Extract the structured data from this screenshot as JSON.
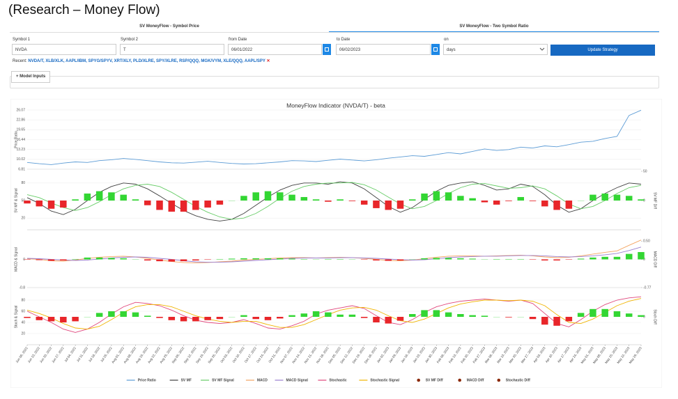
{
  "header": {
    "title": "(Research – Money Flow)"
  },
  "tabs": [
    "SV MoneyFlow - Symbol Price",
    "SV MoneyFlow - Two Symbol Ratio"
  ],
  "form": {
    "symbol1": {
      "label": "Symbol 1",
      "value": "NVDA"
    },
    "symbol2": {
      "label": "Symbol 2",
      "value": "T"
    },
    "from_date": {
      "label": "from Date",
      "value": "06/01/2022"
    },
    "to_date": {
      "label": "to Date",
      "value": "06/02/2023"
    },
    "interval": {
      "label": "on",
      "value": "days"
    },
    "button": "Update Strategy"
  },
  "recent": {
    "label": "Recent:",
    "items": "NVDA/T, XLB/XLK, AAPL/IBM, SPYG/SPYV, XRT/XLY, PLD/XLRE, SPY/XLRE, RSP/QQQ, MGK/VYM, XLE/QQQ, AAPL/SPY"
  },
  "model_inputs": "Model Inputs",
  "chart_data": {
    "type": "line",
    "title": "MoneyFlow Indicator (NVDA/T) - beta",
    "grid": true,
    "legend": "bottom",
    "positive_color": "#33d633",
    "negative_color": "#e8262a",
    "x": [
      "Jun 06, 2022",
      "Jun 13, 2022",
      "Jun 20, 2022",
      "Jun 27, 2022",
      "Jul 04, 2022",
      "Jul 11, 2022",
      "Jul 18, 2022",
      "Jul 25, 2022",
      "Aug 01, 2022",
      "Aug 08, 2022",
      "Aug 15, 2022",
      "Aug 22, 2022",
      "Aug 29, 2022",
      "Sep 05, 2022",
      "Sep 12, 2022",
      "Sep 19, 2022",
      "Sep 26, 2022",
      "Oct 03, 2022",
      "Oct 10, 2022",
      "Oct 17, 2022",
      "Oct 24, 2022",
      "Oct 31, 2022",
      "Nov 07, 2022",
      "Nov 14, 2022",
      "Nov 21, 2022",
      "Nov 28, 2022",
      "Dec 05, 2022",
      "Dec 12, 2022",
      "Dec 19, 2022",
      "Dec 26, 2022",
      "Jan 02, 2023",
      "Jan 09, 2023",
      "Jan 16, 2023",
      "Jan 23, 2023",
      "Jan 30, 2023",
      "Feb 06, 2023",
      "Feb 13, 2023",
      "Feb 20, 2023",
      "Feb 27, 2023",
      "Mar 06, 2023",
      "Mar 13, 2023",
      "Mar 20, 2023",
      "Mar 27, 2023",
      "Apr 03, 2023",
      "Apr 10, 2023",
      "Apr 17, 2023",
      "Apr 24, 2023",
      "May 01, 2023",
      "May 08, 2023",
      "May 15, 2023",
      "May 22, 2023",
      "May 29, 2023"
    ],
    "panels": [
      {
        "ylabel": "Price Ratio",
        "ylim": [
          6.81,
          26.07
        ],
        "yticks": [
          6.81,
          10.02,
          13.23,
          16.44,
          19.65,
          22.86,
          26.07
        ],
        "series": [
          {
            "name": "Price Ratio",
            "type": "line",
            "color": "#5b9bd5",
            "values": [
              9.0,
              8.6,
              8.3,
              8.8,
              9.2,
              9.0,
              9.6,
              9.9,
              10.3,
              10.0,
              9.6,
              9.2,
              8.9,
              8.8,
              9.1,
              9.4,
              9.0,
              8.7,
              8.5,
              8.6,
              8.9,
              9.2,
              9.6,
              9.5,
              9.3,
              9.7,
              10.1,
              9.8,
              9.5,
              9.9,
              10.4,
              10.8,
              11.2,
              11.0,
              11.6,
              12.2,
              11.8,
              12.6,
              13.4,
              12.9,
              13.2,
              14.0,
              13.7,
              14.4,
              14.1,
              14.8,
              15.6,
              15.9,
              16.8,
              17.5,
              24.3,
              26.0
            ]
          }
        ]
      },
      {
        "ylabel": "SV MF & Signal",
        "y2label": "SV MF Diff",
        "ylim": [
          0,
          100
        ],
        "yticks": [
          20,
          50,
          80
        ],
        "y2lim": [
          -50,
          50
        ],
        "y2ticks": [
          0,
          50
        ],
        "series": [
          {
            "name": "SV MF",
            "type": "line",
            "color": "#404040",
            "values": [
              55,
              45,
              32,
              26,
              35,
              50,
              64,
              74,
              80,
              78,
              70,
              58,
              45,
              33,
              24,
              18,
              15,
              18,
              28,
              42,
              56,
              68,
              76,
              80,
              80,
              78,
              82,
              80,
              70,
              55,
              40,
              30,
              38,
              52,
              66,
              76,
              80,
              82,
              76,
              68,
              70,
              78,
              74,
              60,
              42,
              30,
              36,
              50,
              62,
              72,
              80,
              78
            ]
          },
          {
            "name": "SV MF Signal",
            "type": "line",
            "color": "#66cc66",
            "values": [
              60,
              55,
              46,
              38,
              33,
              38,
              48,
              60,
              70,
              76,
              78,
              74,
              64,
              52,
              40,
              30,
              22,
              18,
              20,
              28,
              40,
              54,
              66,
              74,
              78,
              80,
              80,
              81,
              77,
              68,
              56,
              44,
              36,
              40,
              50,
              62,
              72,
              78,
              79,
              75,
              71,
              72,
              75,
              70,
              58,
              44,
              36,
              40,
              50,
              62,
              72,
              76
            ]
          },
          {
            "name": "SV MF Diff",
            "type": "bar",
            "axis": "y2",
            "color": "#8b2a0a",
            "values": [
              -5,
              -10,
              -14,
              -12,
              2,
              12,
              16,
              14,
              10,
              2,
              -8,
              -16,
              -19,
              -19,
              -16,
              -12,
              -7,
              0,
              8,
              14,
              16,
              14,
              10,
              6,
              2,
              -2,
              2,
              -1,
              -7,
              -13,
              -16,
              -14,
              2,
              12,
              16,
              14,
              8,
              4,
              -3,
              -7,
              -1,
              6,
              -1,
              -10,
              -16,
              -14,
              0,
              10,
              12,
              10,
              8,
              2
            ]
          }
        ]
      },
      {
        "ylabel": "MACD & Signal",
        "y2label": "MACD Diff",
        "ylim": [
          -0.8,
          0.8
        ],
        "yticks": [
          -0.8,
          0
        ],
        "y2lim": [
          -0.77,
          0.77
        ],
        "y2ticks": [
          -0.77,
          0,
          {
            "value": 0.5,
            "label": "0.50"
          }
        ],
        "series": [
          {
            "name": "MACD",
            "type": "line",
            "color": "#f4a460",
            "values": [
              0.02,
              0.0,
              -0.04,
              -0.05,
              -0.02,
              0.03,
              0.06,
              0.08,
              0.09,
              0.07,
              0.03,
              -0.02,
              -0.06,
              -0.09,
              -0.1,
              -0.09,
              -0.07,
              -0.05,
              -0.02,
              0.0,
              0.02,
              0.04,
              0.05,
              0.05,
              0.04,
              0.05,
              0.06,
              0.05,
              0.03,
              0.0,
              -0.03,
              -0.04,
              -0.02,
              0.02,
              0.06,
              0.09,
              0.1,
              0.1,
              0.09,
              0.1,
              0.11,
              0.12,
              0.1,
              0.07,
              0.05,
              0.06,
              0.1,
              0.15,
              0.2,
              0.24,
              0.4,
              0.55
            ]
          },
          {
            "name": "MACD Signal",
            "type": "line",
            "color": "#9a7fcf",
            "values": [
              0.03,
              0.02,
              0.0,
              -0.02,
              -0.03,
              -0.02,
              0.01,
              0.04,
              0.06,
              0.07,
              0.06,
              0.03,
              0.0,
              -0.04,
              -0.07,
              -0.08,
              -0.08,
              -0.07,
              -0.05,
              -0.03,
              -0.01,
              0.01,
              0.03,
              0.04,
              0.04,
              0.04,
              0.05,
              0.05,
              0.04,
              0.03,
              0.01,
              -0.01,
              -0.02,
              -0.01,
              0.02,
              0.05,
              0.07,
              0.08,
              0.09,
              0.09,
              0.1,
              0.11,
              0.11,
              0.1,
              0.08,
              0.07,
              0.08,
              0.1,
              0.13,
              0.17,
              0.25,
              0.35
            ]
          },
          {
            "name": "MACD Diff",
            "type": "bar",
            "axis": "y2",
            "color": "#8b2a0a",
            "values": [
              -0.01,
              -0.02,
              -0.04,
              -0.03,
              0.01,
              0.05,
              0.05,
              0.04,
              0.03,
              0.0,
              -0.03,
              -0.05,
              -0.06,
              -0.05,
              -0.03,
              -0.01,
              0.01,
              0.02,
              0.03,
              0.03,
              0.03,
              0.03,
              0.02,
              0.01,
              0.0,
              0.01,
              0.01,
              0.0,
              -0.01,
              -0.03,
              -0.04,
              -0.03,
              0.0,
              0.03,
              0.04,
              0.04,
              0.03,
              0.02,
              0.0,
              0.01,
              0.01,
              0.01,
              -0.01,
              -0.03,
              -0.03,
              -0.01,
              0.02,
              0.05,
              0.07,
              0.07,
              0.15,
              0.2
            ]
          }
        ]
      },
      {
        "ylabel": "Stoch & Signal",
        "y2label": "Stoch Diff",
        "ylim": [
          0,
          100
        ],
        "yticks": [
          20,
          40,
          60,
          80
        ],
        "y2lim": [
          -50,
          50
        ],
        "y2ticks": [
          0
        ],
        "series": [
          {
            "name": "Stochastic",
            "type": "line",
            "color": "#e0457b",
            "values": [
              60,
              50,
              40,
              28,
              22,
              28,
              40,
              55,
              68,
              76,
              74,
              70,
              62,
              52,
              44,
              40,
              38,
              40,
              45,
              38,
              30,
              28,
              34,
              42,
              55,
              62,
              66,
              70,
              65,
              52,
              40,
              36,
              45,
              58,
              68,
              74,
              78,
              80,
              82,
              80,
              78,
              80,
              74,
              56,
              38,
              32,
              45,
              60,
              72,
              80,
              84,
              86
            ]
          },
          {
            "name": "Stochastic Signal",
            "type": "line",
            "color": "#f0b400",
            "values": [
              62,
              56,
              48,
              38,
              30,
              28,
              33,
              45,
              58,
              68,
              72,
              72,
              68,
              60,
              52,
              46,
              42,
              40,
              42,
              42,
              36,
              31,
              31,
              36,
              45,
              54,
              62,
              66,
              67,
              62,
              52,
              43,
              40,
              46,
              56,
              66,
              73,
              77,
              80,
              80,
              79,
              80,
              78,
              70,
              54,
              40,
              38,
              46,
              58,
              70,
              78,
              83
            ]
          },
          {
            "name": "Stochastic Diff",
            "type": "bar",
            "axis": "y2",
            "color": "#8b2a0a",
            "values": [
              -2,
              -6,
              -8,
              -10,
              -8,
              0,
              7,
              10,
              10,
              8,
              2,
              -2,
              -6,
              -8,
              -8,
              -6,
              -4,
              0,
              3,
              -4,
              -6,
              -3,
              3,
              6,
              10,
              8,
              4,
              4,
              -2,
              -10,
              -12,
              -7,
              5,
              12,
              12,
              8,
              5,
              3,
              2,
              0,
              -1,
              0,
              -4,
              -14,
              -16,
              -8,
              7,
              14,
              14,
              10,
              6,
              3
            ]
          }
        ]
      }
    ]
  }
}
